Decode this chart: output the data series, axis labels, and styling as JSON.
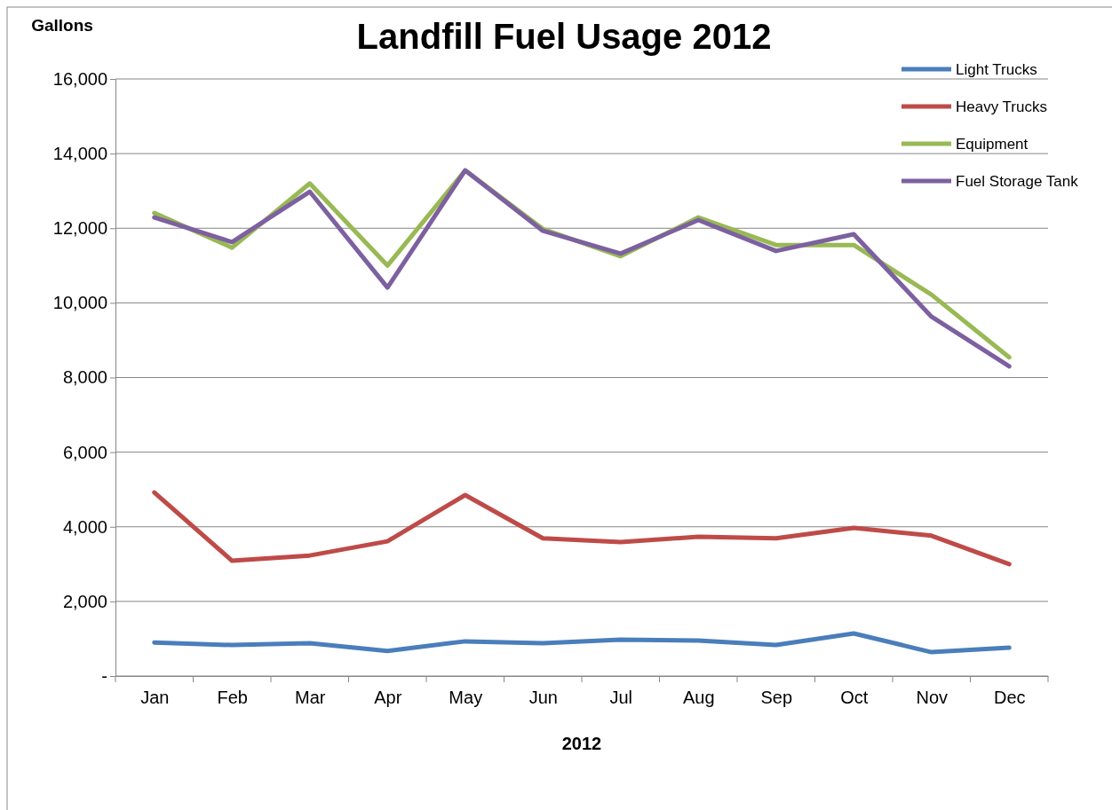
{
  "chart_data": {
    "type": "line",
    "title": "Landfill Fuel Usage 2012",
    "xlabel": "2012",
    "ylabel": "Gallons",
    "categories": [
      "Jan",
      "Feb",
      "Mar",
      "Apr",
      "May",
      "Jun",
      "Jul",
      "Aug",
      "Sep",
      "Oct",
      "Nov",
      "Dec"
    ],
    "series": [
      {
        "name": "Light Trucks",
        "color": "#4a7ebb",
        "values": [
          900,
          830,
          880,
          670,
          930,
          880,
          975,
          950,
          830,
          1140,
          640,
          760
        ]
      },
      {
        "name": "Heavy Trucks",
        "color": "#be4b48",
        "values": [
          4920,
          3090,
          3230,
          3610,
          4850,
          3690,
          3590,
          3730,
          3690,
          3970,
          3760,
          3000
        ]
      },
      {
        "name": "Equipment",
        "color": "#98b954",
        "values": [
          12410,
          11480,
          13200,
          11000,
          13550,
          11980,
          11250,
          12290,
          11550,
          11550,
          10220,
          8540
        ]
      },
      {
        "name": "Fuel Storage Tank",
        "color": "#7d60a0",
        "values": [
          12290,
          11630,
          12980,
          10410,
          13550,
          11930,
          11320,
          12220,
          11390,
          11840,
          9630,
          8300
        ]
      }
    ],
    "ylim": [
      0,
      16000
    ],
    "yticks": [
      {
        "value": 0,
        "label": "-"
      },
      {
        "value": 2000,
        "label": "2,000"
      },
      {
        "value": 4000,
        "label": "4,000"
      },
      {
        "value": 6000,
        "label": "6,000"
      },
      {
        "value": 8000,
        "label": "8,000"
      },
      {
        "value": 10000,
        "label": "10,000"
      },
      {
        "value": 12000,
        "label": "12,000"
      },
      {
        "value": 14000,
        "label": "14,000"
      },
      {
        "value": 16000,
        "label": "16,000"
      }
    ],
    "grid": "y",
    "legend": "top right",
    "marker": "none",
    "line_style": "solid"
  }
}
